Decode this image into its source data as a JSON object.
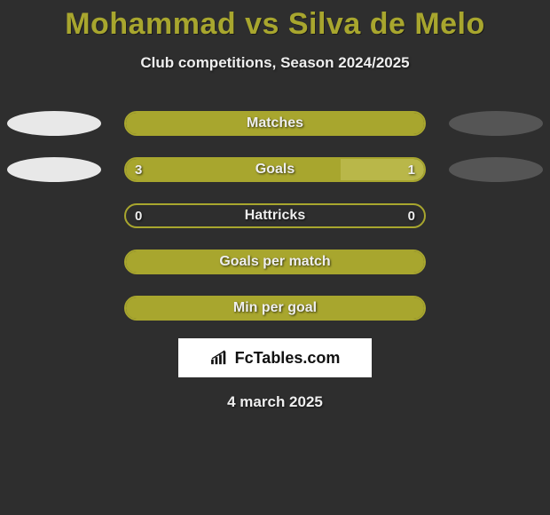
{
  "title": "Mohammad vs Silva de Melo",
  "subtitle": "Club competitions, Season 2024/2025",
  "date": "4 march 2025",
  "brand": "FcTables.com",
  "colors": {
    "background": "#2e2e2e",
    "accent": "#a8a62e",
    "accent_light": "#b9b749",
    "player1_pill": "#e8e8e8",
    "player2_pill": "#555555",
    "text": "#eeeeee",
    "brand_bg": "#ffffff",
    "brand_text": "#111111"
  },
  "rows": [
    {
      "label": "Matches",
      "left_value": "",
      "right_value": "",
      "left_pct": 100,
      "right_pct": 0,
      "fill_left_color": "#a8a62e",
      "fill_right_color": "#b9b749",
      "border_color": "#a8a62e",
      "show_pills": true
    },
    {
      "label": "Goals",
      "left_value": "3",
      "right_value": "1",
      "left_pct": 72,
      "right_pct": 28,
      "fill_left_color": "#a8a62e",
      "fill_right_color": "#b9b749",
      "border_color": "#a8a62e",
      "show_pills": true
    },
    {
      "label": "Hattricks",
      "left_value": "0",
      "right_value": "0",
      "left_pct": 0,
      "right_pct": 0,
      "fill_left_color": "#a8a62e",
      "fill_right_color": "#b9b749",
      "border_color": "#a8a62e",
      "show_pills": false
    },
    {
      "label": "Goals per match",
      "left_value": "",
      "right_value": "",
      "left_pct": 100,
      "right_pct": 0,
      "fill_left_color": "#a8a62e",
      "fill_right_color": "#b9b749",
      "border_color": "#a8a62e",
      "show_pills": false
    },
    {
      "label": "Min per goal",
      "left_value": "",
      "right_value": "",
      "left_pct": 100,
      "right_pct": 0,
      "fill_left_color": "#a8a62e",
      "fill_right_color": "#b9b749",
      "border_color": "#a8a62e",
      "show_pills": false
    }
  ]
}
